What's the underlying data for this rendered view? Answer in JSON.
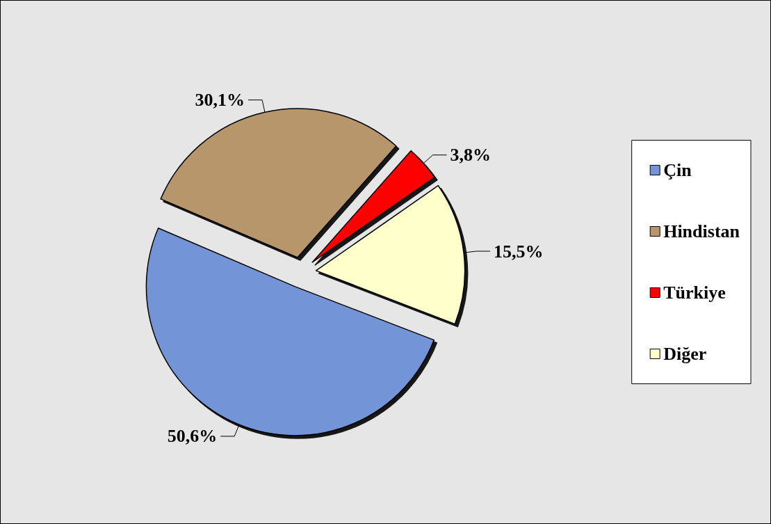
{
  "chart_data": {
    "type": "pie",
    "categories": [
      "Çin",
      "Hindistan",
      "Türkiye",
      "Diğer"
    ],
    "values": [
      50.6,
      30.1,
      3.8,
      15.5
    ],
    "colors": [
      "#7394d6",
      "#b8966c",
      "#ff0000",
      "#ffffcc"
    ],
    "value_labels": [
      "50,6%",
      "30,1%",
      "3,8%",
      "15,5%"
    ],
    "legend": "right"
  }
}
